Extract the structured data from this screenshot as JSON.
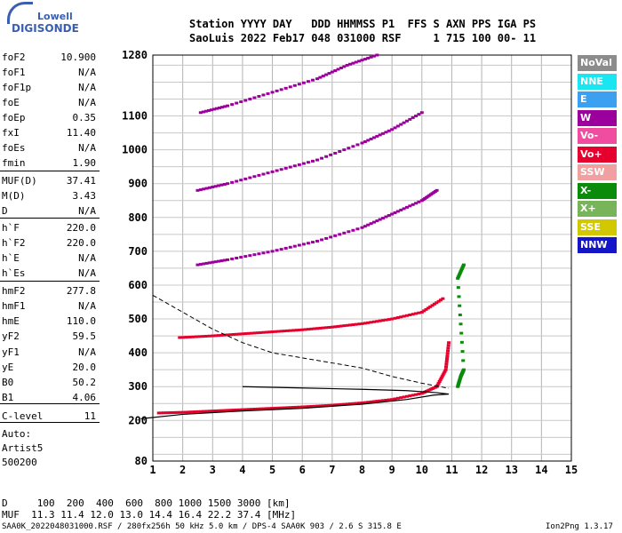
{
  "logo": {
    "line1": "Lowell",
    "line2": "DIGISONDE"
  },
  "header": {
    "row1": "Station YYYY DAY   DDD HHMMSS P1  FFS S AXN PPS IGA PS",
    "row2": "SaoLuis 2022 Feb17 048 031000 RSF     1 715 100 00- 11"
  },
  "params": [
    {
      "name": "foF2",
      "value": "10.900"
    },
    {
      "name": "foF1",
      "value": "N/A"
    },
    {
      "name": "foF1p",
      "value": "N/A"
    },
    {
      "name": "foE",
      "value": "N/A"
    },
    {
      "name": "foEp",
      "value": "0.35"
    },
    {
      "name": "fxI",
      "value": "11.40"
    },
    {
      "name": "foEs",
      "value": "N/A"
    },
    {
      "name": "fmin",
      "value": "1.90"
    },
    {
      "name": "MUF(D)",
      "value": "37.41"
    },
    {
      "name": "M(D)",
      "value": "3.43"
    },
    {
      "name": "D",
      "value": "N/A"
    },
    {
      "name": "h`F",
      "value": "220.0"
    },
    {
      "name": "h`F2",
      "value": "220.0"
    },
    {
      "name": "h`E",
      "value": "N/A"
    },
    {
      "name": "h`Es",
      "value": "N/A"
    },
    {
      "name": "hmF2",
      "value": "277.8"
    },
    {
      "name": "hmF1",
      "value": "N/A"
    },
    {
      "name": "hmE",
      "value": "110.0"
    },
    {
      "name": "yF2",
      "value": "59.5"
    },
    {
      "name": "yF1",
      "value": "N/A"
    },
    {
      "name": "yE",
      "value": "20.0"
    },
    {
      "name": "B0",
      "value": "50.2"
    },
    {
      "name": "B1",
      "value": "4.06"
    },
    {
      "name": "C-level",
      "value": "11"
    }
  ],
  "auto": {
    "line1": "Auto:",
    "line2": "Artist5",
    "line3": "500200"
  },
  "legend": [
    {
      "label": "NoVal",
      "color": "#8c8c8c"
    },
    {
      "label": "NNE",
      "color": "#19e6f0"
    },
    {
      "label": "E",
      "color": "#3ca0f0"
    },
    {
      "label": "W",
      "color": "#9c009c"
    },
    {
      "label": "Vo-",
      "color": "#f04ca0"
    },
    {
      "label": "Vo+",
      "color": "#e6002d"
    },
    {
      "label": "SSW",
      "color": "#f0a0a0"
    },
    {
      "label": "X-",
      "color": "#0a8c0a"
    },
    {
      "label": "X+",
      "color": "#78b45a"
    },
    {
      "label": "SSE",
      "color": "#d2c800"
    },
    {
      "label": "NNW",
      "color": "#1414c8"
    }
  ],
  "bottom": {
    "d_row": "D     100  200  400  600  800 1000 1500 3000 [km]",
    "muf_row": "MUF  11.3 11.4 12.0 13.0 14.4 16.4 22.2 37.4 [MHz]"
  },
  "footer": {
    "left": "SAA0K_2022048031000.RSF / 280fx256h 50 kHz 5.0 km / DPS-4 SAA0K 903 / 2.6 S 315.8 E",
    "right": "Ion2Png 1.3.17"
  },
  "chart_data": {
    "type": "scatter",
    "title": "",
    "xlabel": "",
    "ylabel": "",
    "xlim": [
      1,
      15
    ],
    "ylim": [
      80,
      1280
    ],
    "x_ticks": [
      1,
      2,
      3,
      4,
      5,
      6,
      7,
      8,
      9,
      10,
      11,
      12,
      13,
      14,
      15
    ],
    "y_ticks": [
      80,
      200,
      300,
      400,
      500,
      600,
      700,
      800,
      900,
      1000,
      1100,
      1280
    ],
    "grid": true,
    "series": [
      {
        "name": "Vo+",
        "points": [
          [
            1.2,
            222
          ],
          [
            2,
            224
          ],
          [
            3,
            228
          ],
          [
            4,
            232
          ],
          [
            5,
            236
          ],
          [
            6,
            240
          ],
          [
            7,
            245
          ],
          [
            8,
            252
          ],
          [
            9,
            262
          ],
          [
            10,
            280
          ],
          [
            10.5,
            300
          ],
          [
            10.8,
            350
          ],
          [
            10.9,
            430
          ]
        ]
      },
      {
        "name": "Vo+",
        "points": [
          [
            1.9,
            445
          ],
          [
            3,
            450
          ],
          [
            4,
            456
          ],
          [
            5,
            462
          ],
          [
            6,
            468
          ],
          [
            7,
            476
          ],
          [
            8,
            486
          ],
          [
            9,
            500
          ],
          [
            10,
            520
          ],
          [
            10.7,
            560
          ]
        ]
      },
      {
        "name": "W",
        "points": [
          [
            2.5,
            660
          ],
          [
            3.5,
            675
          ],
          [
            5,
            700
          ],
          [
            6.5,
            730
          ],
          [
            8,
            770
          ],
          [
            9,
            810
          ],
          [
            10,
            850
          ],
          [
            10.5,
            880
          ]
        ]
      },
      {
        "name": "W",
        "points": [
          [
            2.5,
            880
          ],
          [
            3.5,
            900
          ],
          [
            5,
            935
          ],
          [
            6.5,
            970
          ],
          [
            8,
            1020
          ],
          [
            9,
            1060
          ],
          [
            10,
            1110
          ]
        ]
      },
      {
        "name": "W",
        "points": [
          [
            2.6,
            1110
          ],
          [
            3.5,
            1130
          ],
          [
            5,
            1170
          ],
          [
            6.5,
            1210
          ],
          [
            7.5,
            1250
          ],
          [
            8.5,
            1280
          ]
        ]
      },
      {
        "name": "X-",
        "points": [
          [
            11.2,
            300
          ],
          [
            11.3,
            330
          ],
          [
            11.4,
            350
          ],
          [
            11.2,
            620
          ],
          [
            11.4,
            660
          ]
        ]
      }
    ],
    "profile_line": [
      [
        0.6,
        205
      ],
      [
        2,
        218
      ],
      [
        4,
        228
      ],
      [
        6,
        236
      ],
      [
        8,
        248
      ],
      [
        9.5,
        262
      ],
      [
        10.4,
        275
      ],
      [
        10.9,
        278
      ],
      [
        10.5,
        282
      ],
      [
        9.5,
        288
      ],
      [
        8,
        292
      ],
      [
        6,
        296
      ],
      [
        4,
        300
      ]
    ],
    "dashed_line": [
      [
        1,
        570
      ],
      [
        2,
        520
      ],
      [
        3,
        470
      ],
      [
        4,
        430
      ],
      [
        5,
        400
      ],
      [
        6,
        385
      ],
      [
        7,
        370
      ],
      [
        8,
        355
      ],
      [
        9,
        330
      ],
      [
        10,
        310
      ],
      [
        10.9,
        295
      ]
    ]
  }
}
